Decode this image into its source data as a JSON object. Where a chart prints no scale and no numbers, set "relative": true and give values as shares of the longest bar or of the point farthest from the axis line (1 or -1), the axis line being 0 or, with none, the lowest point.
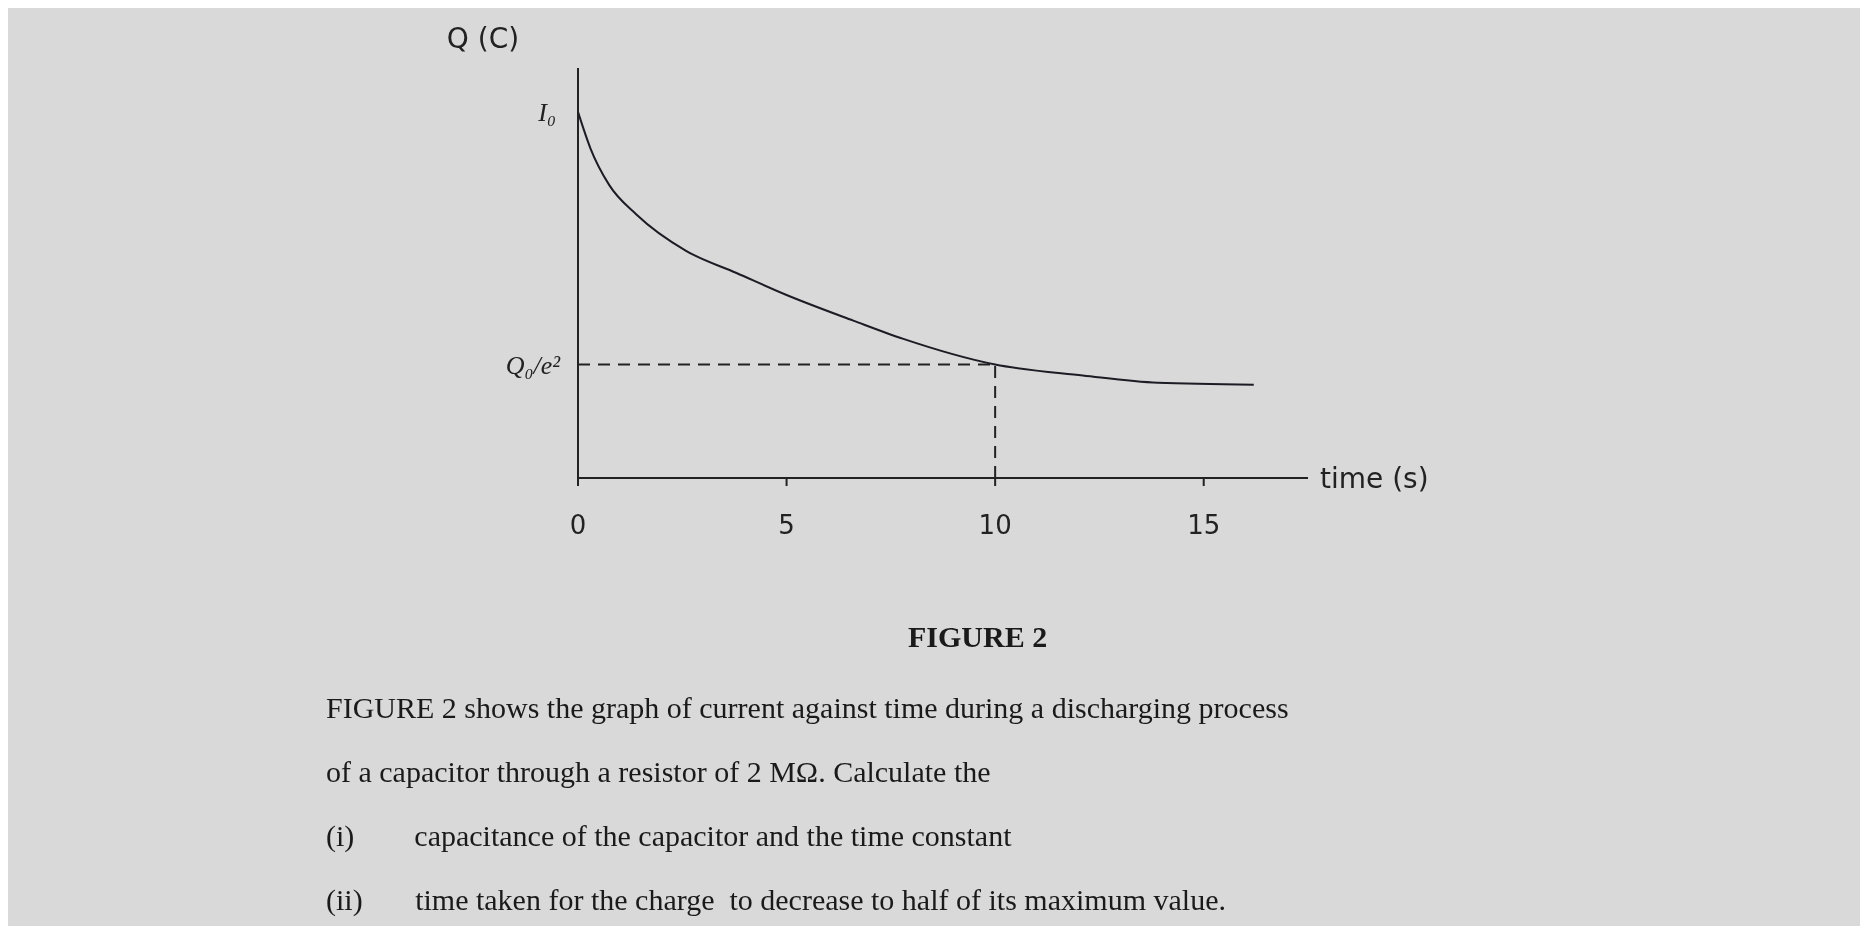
{
  "chart_data": {
    "type": "line",
    "title": "FIGURE 2",
    "ylabel": "Q (C)",
    "xlabel": "time (s)",
    "relative": true,
    "marker": "none",
    "color": "#1c1c24",
    "x": [
      0,
      0.3,
      0.75,
      1.4,
      2.6,
      3.8,
      5,
      6.6,
      7.8,
      10,
      12.1,
      13.9,
      16.2
    ],
    "values": [
      1,
      0.9,
      0.8,
      0.72,
      0.62,
      0.56,
      0.5,
      0.43,
      0.38,
      0.31,
      0.28,
      0.26,
      0.255
    ],
    "xlim": [
      0,
      17.5
    ],
    "xticks": [
      0,
      5,
      10,
      15
    ],
    "ref_lines": [
      {
        "axis": "y",
        "value": 0.31,
        "label": "Q₀/e²",
        "line_style": "dashed"
      },
      {
        "axis": "x",
        "value": 10,
        "line_style": "dashed"
      }
    ],
    "annotations": [
      {
        "text": "I₀",
        "x": 0,
        "y": 1
      },
      "FIGURE 2 shows the graph of current against time during a discharging process",
      "of a capacitor through a resistor of 2 MΩ. Calculate the",
      "(i)        capacitance of the capacitor and the time constant",
      "(ii)       time taken for the charge  to decrease to half of its maximum value."
    ]
  }
}
